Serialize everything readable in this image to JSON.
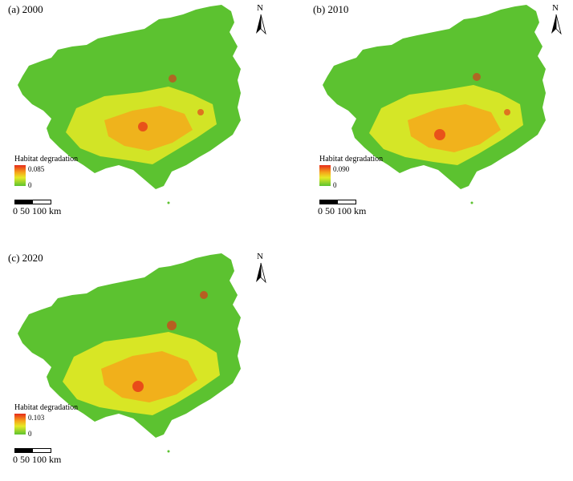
{
  "panels": [
    {
      "label": "(a) 2000",
      "legend_title": "Habitat degradation",
      "max": "0.085",
      "min": "0"
    },
    {
      "label": "(b) 2010",
      "legend_title": "Habitat degradation",
      "max": "0.090",
      "min": "0"
    },
    {
      "label": "(c) 2020",
      "legend_title": "Habitat degradation",
      "max": "0.103",
      "min": "0"
    }
  ],
  "north_arrow": "N",
  "scale": {
    "labels": "0   50 100 km"
  },
  "colors": {
    "low": "#5cc230",
    "mid": "#e6ea25",
    "high": "#e62a1a",
    "orange": "#f6a61a"
  }
}
